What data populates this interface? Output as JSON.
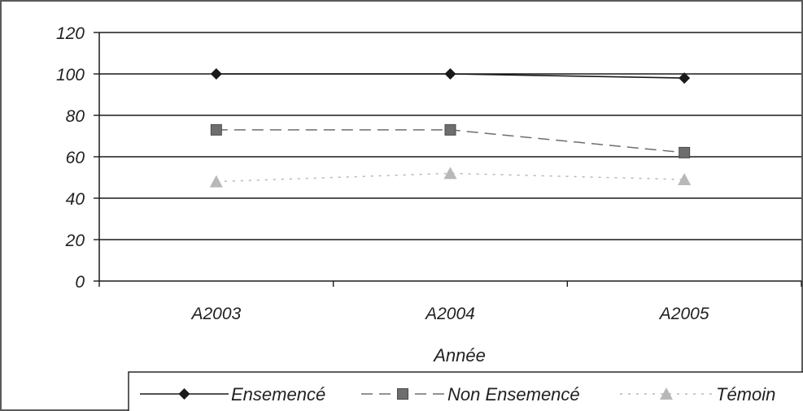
{
  "chart_data": {
    "type": "line",
    "categories": [
      "A2003",
      "A2004",
      "A2005"
    ],
    "xlabel": "Année",
    "ylabel": "",
    "title": "",
    "ylim": [
      0,
      120
    ],
    "yticks": [
      0,
      20,
      40,
      60,
      80,
      100,
      120
    ],
    "grid": true,
    "legend_position": "bottom",
    "series": [
      {
        "name": "Ensemencé",
        "values": [
          100,
          100,
          98
        ],
        "color": "#1a1a1a",
        "marker": "diamond",
        "line_style": "solid"
      },
      {
        "name": "Non Ensemencé",
        "values": [
          73,
          73,
          62
        ],
        "color": "#6e6e6e",
        "marker": "square",
        "line_style": "dashed"
      },
      {
        "name": "Témoin",
        "values": [
          48,
          52,
          49
        ],
        "color": "#b8b8b8",
        "marker": "triangle",
        "line_style": "dotted"
      }
    ]
  }
}
